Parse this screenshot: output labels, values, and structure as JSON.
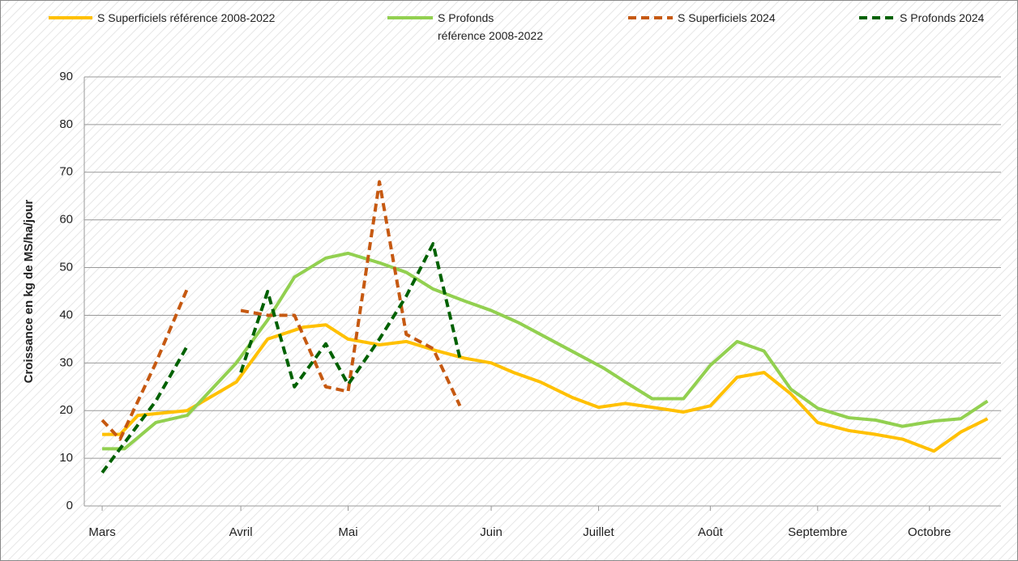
{
  "chart_data": {
    "type": "line",
    "ylabel": "Croissance en kg de MS/ha/jour",
    "xlim": [
      0,
      205
    ],
    "xticks": [
      {
        "value": 4,
        "label": "Mars"
      },
      {
        "value": 35,
        "label": "Avril"
      },
      {
        "value": 59,
        "label": "Mai"
      },
      {
        "value": 91,
        "label": "Juin"
      },
      {
        "value": 115,
        "label": "Juillet"
      },
      {
        "value": 140,
        "label": "Août"
      },
      {
        "value": 164,
        "label": "Septembre"
      },
      {
        "value": 189,
        "label": "Octobre"
      }
    ],
    "ylim": [
      0,
      90
    ],
    "yticks": [
      0,
      10,
      20,
      30,
      40,
      50,
      60,
      70,
      80,
      90
    ],
    "grid": true,
    "series": [
      {
        "name": "S Superficiels référence 2008-2022",
        "color": "#ffc000",
        "dashed": false,
        "x": [
          4,
          8,
          12,
          23,
          34,
          41,
          49,
          54,
          59,
          66,
          72,
          79,
          85,
          91,
          96,
          102,
          109,
          115,
          121,
          127,
          134,
          140,
          146,
          152,
          158,
          164,
          171,
          177,
          183,
          190,
          196,
          202
        ],
        "values": [
          15,
          15,
          19,
          20,
          26,
          35,
          37.5,
          38,
          35,
          33.8,
          34.5,
          32.5,
          31,
          30,
          28,
          26,
          22.8,
          20.7,
          21.5,
          20.7,
          19.7,
          21,
          27,
          28,
          23.5,
          17.5,
          15.8,
          15,
          14,
          11.5,
          15.5,
          18.3
        ]
      },
      {
        "name": "S Profonds\nréférence 2008-2022",
        "color": "#92d050",
        "dashed": false,
        "x": [
          4,
          9,
          16,
          23,
          34,
          41,
          47,
          54,
          59,
          66,
          72,
          78,
          85,
          91,
          97,
          103,
          110,
          116,
          121,
          127,
          134,
          140,
          146,
          152,
          158,
          164,
          171,
          177,
          183,
          190,
          196,
          202
        ],
        "values": [
          12,
          12,
          17.5,
          19,
          30,
          39,
          48,
          52,
          53,
          51,
          49,
          45.5,
          43,
          41,
          38.5,
          35.5,
          32,
          29,
          26,
          22.5,
          22.5,
          29.5,
          34.5,
          32.5,
          24.5,
          20.5,
          18.5,
          18,
          16.7,
          17.8,
          18.3,
          22
        ]
      },
      {
        "name": "S Superficiels 2024",
        "color": "#c65911",
        "dashed": true,
        "x": [
          4,
          8,
          16,
          23,
          29,
          35,
          41,
          47,
          54,
          59,
          66,
          72,
          78,
          84
        ],
        "values": [
          18,
          14,
          30,
          45.5,
          null,
          41,
          40,
          40,
          25,
          24,
          68,
          36,
          33,
          21
        ]
      },
      {
        "name": "S Profonds 2024",
        "color": "#006100",
        "dashed": true,
        "x": [
          4,
          8,
          16,
          23,
          29,
          35,
          41,
          47,
          54,
          59,
          66,
          72,
          78,
          84
        ],
        "values": [
          7,
          12,
          22,
          33.5,
          null,
          28,
          45,
          25,
          34,
          25.5,
          35,
          44,
          55,
          31
        ]
      }
    ]
  }
}
